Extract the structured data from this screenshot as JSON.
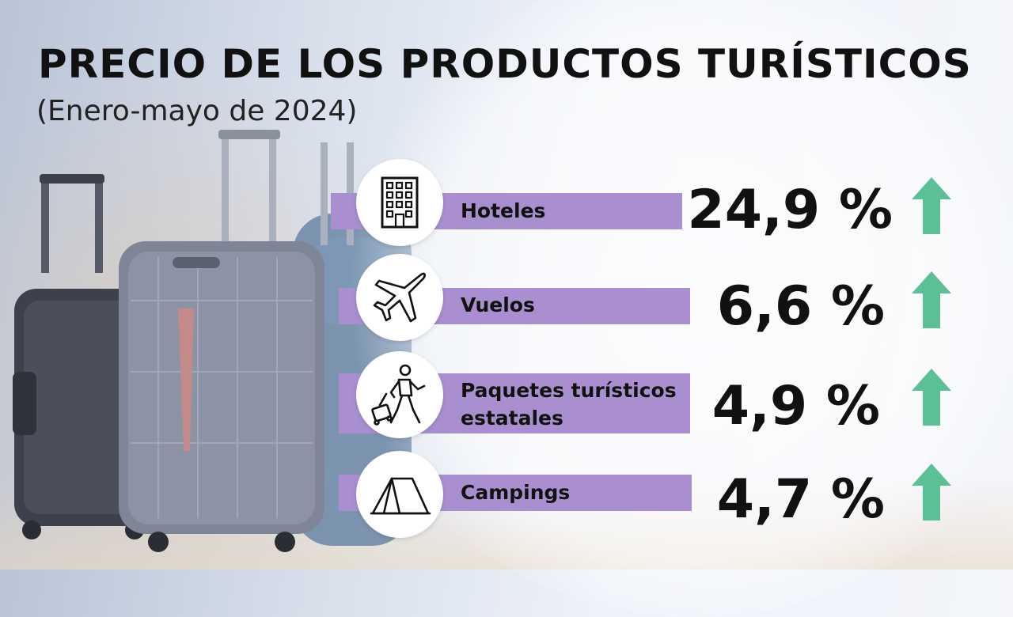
{
  "title": "PRECIO DE LOS PRODUCTOS TURÍSTICOS",
  "subtitle": "(Enero-mayo de 2024)",
  "colors": {
    "bar": "#a98fcf",
    "arrow_up": "#5cbf96",
    "text": "#111111"
  },
  "items": [
    {
      "label": "Hoteles",
      "value": "24,9 %",
      "icon": "hotel-building-icon",
      "trend": "up"
    },
    {
      "label": "Vuelos",
      "value": "6,6 %",
      "icon": "airplane-icon",
      "trend": "up"
    },
    {
      "label_line1": "Paquetes turísticos",
      "label_line2": "estatales",
      "value": "4,9 %",
      "icon": "traveler-with-suitcase-icon",
      "trend": "up"
    },
    {
      "label": "Campings",
      "value": "4,7 %",
      "icon": "tent-icon",
      "trend": "up"
    }
  ]
}
